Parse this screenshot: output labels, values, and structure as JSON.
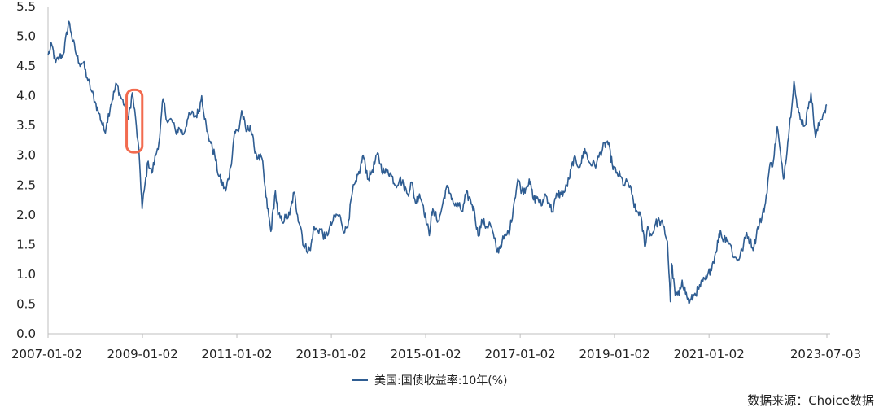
{
  "chart_data": {
    "type": "line",
    "title": "",
    "xlabel": "",
    "ylabel": "",
    "ylim": [
      0,
      5.5
    ],
    "yticks": [
      "0.0",
      "0.5",
      "1.0",
      "1.5",
      "2.0",
      "2.5",
      "3.0",
      "3.5",
      "4.0",
      "4.5",
      "5.0",
      "5.5"
    ],
    "xticks": [
      "2007-01-02",
      "2009-01-02",
      "2011-01-02",
      "2013-01-02",
      "2015-01-02",
      "2017-01-02",
      "2019-01-02",
      "2021-01-02",
      "2023-07-03"
    ],
    "xlim": [
      "2007-01-02",
      "2023-07-03"
    ],
    "grid": false,
    "legend_position": "bottom-center",
    "series": [
      {
        "name": "美国:国债收益率:10年(%)",
        "color": "#2F5D92",
        "points": [
          [
            "2007-01-02",
            4.68
          ],
          [
            "2007-02-01",
            4.85
          ],
          [
            "2007-03-01",
            4.55
          ],
          [
            "2007-04-01",
            4.65
          ],
          [
            "2007-05-01",
            4.7
          ],
          [
            "2007-06-12",
            5.25
          ],
          [
            "2007-07-01",
            5.05
          ],
          [
            "2007-08-01",
            4.75
          ],
          [
            "2007-09-01",
            4.55
          ],
          [
            "2007-10-01",
            4.55
          ],
          [
            "2007-11-01",
            4.3
          ],
          [
            "2007-12-01",
            4.1
          ],
          [
            "2008-01-01",
            3.9
          ],
          [
            "2008-02-01",
            3.7
          ],
          [
            "2008-03-15",
            3.4
          ],
          [
            "2008-04-01",
            3.55
          ],
          [
            "2008-05-01",
            3.85
          ],
          [
            "2008-06-15",
            4.2
          ],
          [
            "2008-07-15",
            4.0
          ],
          [
            "2008-08-15",
            3.85
          ],
          [
            "2008-09-15",
            3.6
          ],
          [
            "2008-10-15",
            4.05
          ],
          [
            "2008-11-15",
            3.5
          ],
          [
            "2008-12-10",
            2.9
          ],
          [
            "2008-12-30",
            2.1
          ],
          [
            "2009-01-15",
            2.4
          ],
          [
            "2009-02-15",
            2.9
          ],
          [
            "2009-03-15",
            2.7
          ],
          [
            "2009-04-15",
            3.0
          ],
          [
            "2009-05-15",
            3.3
          ],
          [
            "2009-06-10",
            3.95
          ],
          [
            "2009-07-15",
            3.55
          ],
          [
            "2009-08-15",
            3.6
          ],
          [
            "2009-09-15",
            3.4
          ],
          [
            "2009-10-15",
            3.45
          ],
          [
            "2009-11-15",
            3.35
          ],
          [
            "2009-12-15",
            3.6
          ],
          [
            "2010-01-15",
            3.7
          ],
          [
            "2010-02-15",
            3.65
          ],
          [
            "2010-03-15",
            3.75
          ],
          [
            "2010-04-05",
            4.0
          ],
          [
            "2010-05-15",
            3.4
          ],
          [
            "2010-06-15",
            3.2
          ],
          [
            "2010-07-15",
            3.0
          ],
          [
            "2010-08-15",
            2.65
          ],
          [
            "2010-10-08",
            2.4
          ],
          [
            "2010-11-15",
            2.8
          ],
          [
            "2010-12-15",
            3.4
          ],
          [
            "2011-01-15",
            3.4
          ],
          [
            "2011-02-08",
            3.75
          ],
          [
            "2011-03-15",
            3.4
          ],
          [
            "2011-04-15",
            3.5
          ],
          [
            "2011-05-15",
            3.15
          ],
          [
            "2011-06-15",
            2.95
          ],
          [
            "2011-07-15",
            2.95
          ],
          [
            "2011-08-15",
            2.3
          ],
          [
            "2011-09-22",
            1.72
          ],
          [
            "2011-10-27",
            2.4
          ],
          [
            "2011-11-15",
            2.0
          ],
          [
            "2011-12-15",
            1.9
          ],
          [
            "2012-01-15",
            1.95
          ],
          [
            "2012-02-15",
            2.0
          ],
          [
            "2012-03-19",
            2.38
          ],
          [
            "2012-04-15",
            2.0
          ],
          [
            "2012-05-15",
            1.75
          ],
          [
            "2012-06-01",
            1.47
          ],
          [
            "2012-07-24",
            1.4
          ],
          [
            "2012-08-15",
            1.75
          ],
          [
            "2012-09-15",
            1.75
          ],
          [
            "2012-10-15",
            1.75
          ],
          [
            "2012-11-15",
            1.6
          ],
          [
            "2012-12-15",
            1.75
          ],
          [
            "2013-01-15",
            1.9
          ],
          [
            "2013-02-15",
            2.0
          ],
          [
            "2013-03-15",
            1.95
          ],
          [
            "2013-04-15",
            1.7
          ],
          [
            "2013-05-15",
            1.9
          ],
          [
            "2013-06-15",
            2.4
          ],
          [
            "2013-07-15",
            2.55
          ],
          [
            "2013-08-15",
            2.8
          ],
          [
            "2013-09-05",
            3.0
          ],
          [
            "2013-10-15",
            2.6
          ],
          [
            "2013-11-15",
            2.75
          ],
          [
            "2013-12-31",
            3.03
          ],
          [
            "2014-01-15",
            2.85
          ],
          [
            "2014-02-15",
            2.7
          ],
          [
            "2014-03-15",
            2.75
          ],
          [
            "2014-04-15",
            2.65
          ],
          [
            "2014-05-15",
            2.5
          ],
          [
            "2014-06-15",
            2.6
          ],
          [
            "2014-07-15",
            2.5
          ],
          [
            "2014-08-15",
            2.35
          ],
          [
            "2014-09-15",
            2.55
          ],
          [
            "2014-10-15",
            2.2
          ],
          [
            "2014-11-15",
            2.35
          ],
          [
            "2014-12-15",
            2.15
          ],
          [
            "2015-01-30",
            1.65
          ],
          [
            "2015-02-15",
            2.05
          ],
          [
            "2015-03-15",
            2.0
          ],
          [
            "2015-04-15",
            1.9
          ],
          [
            "2015-05-15",
            2.2
          ],
          [
            "2015-06-10",
            2.45
          ],
          [
            "2015-07-15",
            2.35
          ],
          [
            "2015-08-15",
            2.15
          ],
          [
            "2015-09-15",
            2.15
          ],
          [
            "2015-10-15",
            2.05
          ],
          [
            "2015-11-09",
            2.35
          ],
          [
            "2015-12-15",
            2.25
          ],
          [
            "2016-01-15",
            2.05
          ],
          [
            "2016-02-11",
            1.65
          ],
          [
            "2016-03-15",
            1.9
          ],
          [
            "2016-04-15",
            1.8
          ],
          [
            "2016-05-15",
            1.85
          ],
          [
            "2016-06-15",
            1.6
          ],
          [
            "2016-07-08",
            1.37
          ],
          [
            "2016-08-15",
            1.55
          ],
          [
            "2016-09-15",
            1.65
          ],
          [
            "2016-10-15",
            1.75
          ],
          [
            "2016-11-15",
            2.2
          ],
          [
            "2016-12-15",
            2.6
          ],
          [
            "2017-01-15",
            2.4
          ],
          [
            "2017-02-15",
            2.45
          ],
          [
            "2017-03-13",
            2.6
          ],
          [
            "2017-04-15",
            2.25
          ],
          [
            "2017-05-15",
            2.3
          ],
          [
            "2017-06-15",
            2.15
          ],
          [
            "2017-07-15",
            2.35
          ],
          [
            "2017-08-15",
            2.2
          ],
          [
            "2017-09-08",
            2.05
          ],
          [
            "2017-10-15",
            2.35
          ],
          [
            "2017-11-15",
            2.35
          ],
          [
            "2017-12-15",
            2.4
          ],
          [
            "2018-01-15",
            2.6
          ],
          [
            "2018-02-21",
            2.95
          ],
          [
            "2018-03-15",
            2.85
          ],
          [
            "2018-04-15",
            2.85
          ],
          [
            "2018-05-17",
            3.11
          ],
          [
            "2018-06-15",
            2.9
          ],
          [
            "2018-07-15",
            2.85
          ],
          [
            "2018-08-15",
            2.85
          ],
          [
            "2018-09-15",
            3.05
          ],
          [
            "2018-11-08",
            3.24
          ],
          [
            "2018-12-15",
            2.85
          ],
          [
            "2019-01-15",
            2.7
          ],
          [
            "2019-02-15",
            2.65
          ],
          [
            "2019-03-15",
            2.5
          ],
          [
            "2019-04-15",
            2.55
          ],
          [
            "2019-05-15",
            2.35
          ],
          [
            "2019-06-15",
            2.05
          ],
          [
            "2019-07-15",
            2.05
          ],
          [
            "2019-08-28",
            1.47
          ],
          [
            "2019-09-15",
            1.8
          ],
          [
            "2019-10-15",
            1.65
          ],
          [
            "2019-11-15",
            1.85
          ],
          [
            "2019-12-15",
            1.9
          ],
          [
            "2020-01-15",
            1.8
          ],
          [
            "2020-02-15",
            1.55
          ],
          [
            "2020-03-09",
            0.54
          ],
          [
            "2020-03-18",
            1.18
          ],
          [
            "2020-04-15",
            0.65
          ],
          [
            "2020-05-15",
            0.65
          ],
          [
            "2020-06-08",
            0.9
          ],
          [
            "2020-07-15",
            0.62
          ],
          [
            "2020-08-04",
            0.52
          ],
          [
            "2020-09-15",
            0.68
          ],
          [
            "2020-10-15",
            0.75
          ],
          [
            "2020-11-15",
            0.88
          ],
          [
            "2020-12-15",
            0.92
          ],
          [
            "2021-01-15",
            1.1
          ],
          [
            "2021-02-15",
            1.3
          ],
          [
            "2021-03-31",
            1.74
          ],
          [
            "2021-04-15",
            1.6
          ],
          [
            "2021-05-15",
            1.62
          ],
          [
            "2021-06-15",
            1.5
          ],
          [
            "2021-07-15",
            1.28
          ],
          [
            "2021-08-15",
            1.25
          ],
          [
            "2021-09-15",
            1.4
          ],
          [
            "2021-10-21",
            1.7
          ],
          [
            "2021-11-15",
            1.55
          ],
          [
            "2021-12-15",
            1.45
          ],
          [
            "2022-01-15",
            1.8
          ],
          [
            "2022-02-15",
            1.95
          ],
          [
            "2022-03-15",
            2.2
          ],
          [
            "2022-04-15",
            2.8
          ],
          [
            "2022-05-15",
            2.9
          ],
          [
            "2022-06-14",
            3.48
          ],
          [
            "2022-07-15",
            2.9
          ],
          [
            "2022-08-01",
            2.6
          ],
          [
            "2022-09-15",
            3.45
          ],
          [
            "2022-10-21",
            4.25
          ],
          [
            "2022-11-15",
            3.8
          ],
          [
            "2022-12-15",
            3.6
          ],
          [
            "2023-01-15",
            3.5
          ],
          [
            "2023-02-15",
            3.9
          ],
          [
            "2023-03-02",
            4.05
          ],
          [
            "2023-04-06",
            3.3
          ],
          [
            "2023-05-15",
            3.6
          ],
          [
            "2023-06-15",
            3.75
          ],
          [
            "2023-07-03",
            3.85
          ]
        ]
      }
    ],
    "annotations": [
      {
        "type": "highlight-box",
        "color": "#F26B4F",
        "x_range": [
          "2008-09-01",
          "2008-12-31"
        ],
        "y_range": [
          3.05,
          4.1
        ]
      }
    ]
  },
  "legend": {
    "label": "美国:国债收益率:10年(%)"
  },
  "source": {
    "text": "数据来源：Choice数据"
  }
}
